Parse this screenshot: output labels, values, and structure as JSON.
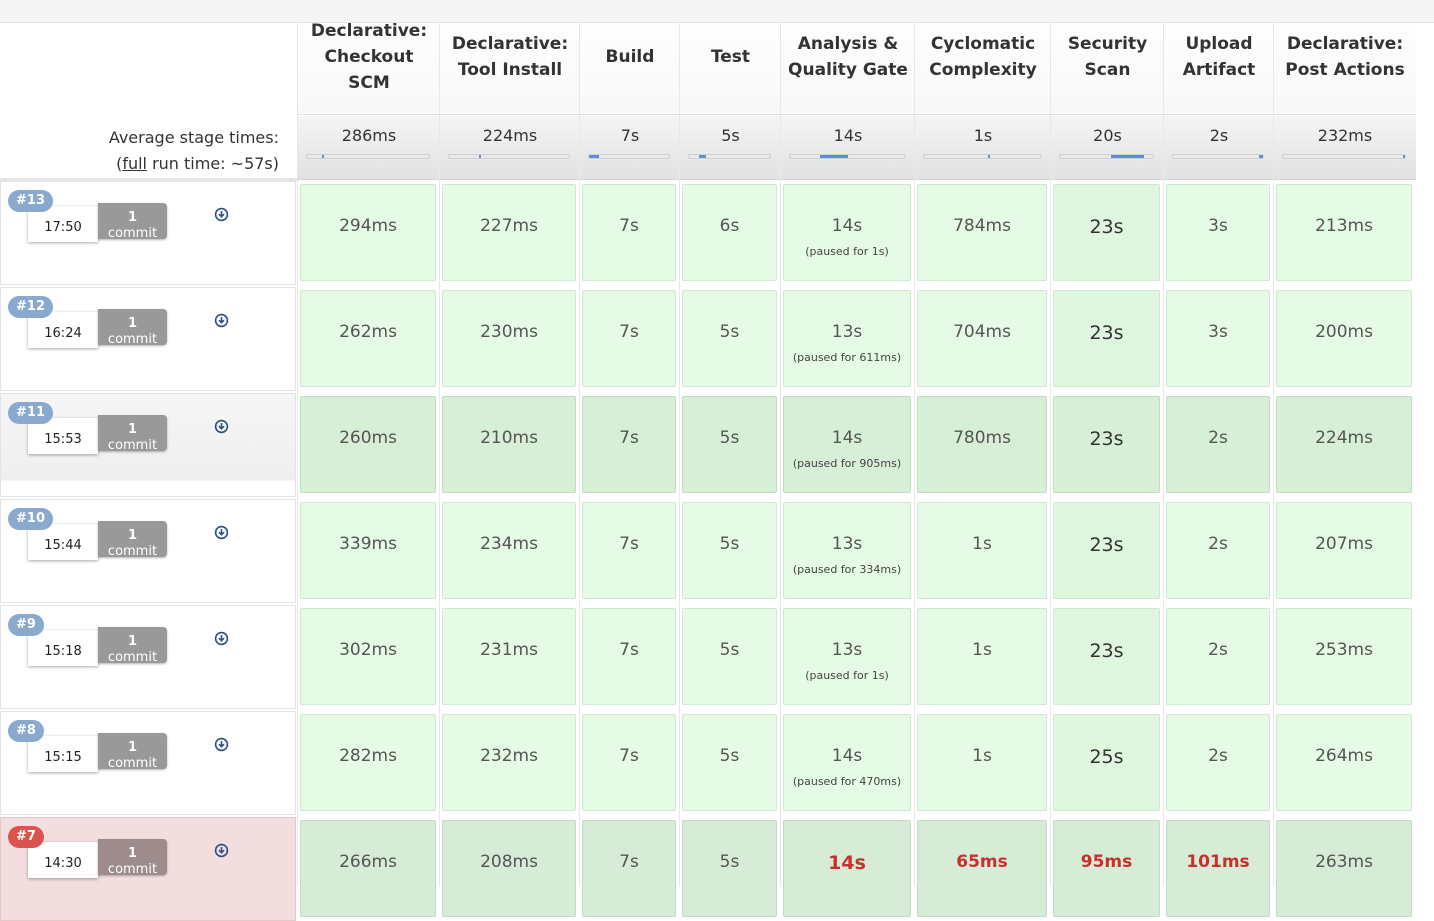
{
  "summary": {
    "avg_label": "Average stage times:",
    "full_prefix": "(",
    "full_link": "full",
    "full_suffix": " run time: ~57s)"
  },
  "stages": [
    {
      "name": "Declarative: Checkout SCM",
      "avg": "286ms",
      "avg_share": 0.005
    },
    {
      "name": "Declarative: Tool Install",
      "avg": "224ms",
      "avg_share": 0.004
    },
    {
      "name": "Build",
      "avg": "7s",
      "avg_share": 0.12
    },
    {
      "name": "Test",
      "avg": "5s",
      "avg_share": 0.09
    },
    {
      "name": "Analysis & Quality Gate",
      "avg": "14s",
      "avg_share": 0.25
    },
    {
      "name": "Cyclomatic Complexity",
      "avg": "1s",
      "avg_share": 0.02
    },
    {
      "name": "Security Scan",
      "avg": "20s",
      "avg_share": 0.35
    },
    {
      "name": "Upload Artifact",
      "avg": "2s",
      "avg_share": 0.04
    },
    {
      "name": "Declarative: Post Actions",
      "avg": "232ms",
      "avg_share": 0.004
    }
  ],
  "runs": [
    {
      "id": "#13",
      "time": "17:50",
      "commits": "1",
      "commit_label": "commit",
      "status": "success",
      "cells": [
        {
          "t": "294ms"
        },
        {
          "t": "227ms"
        },
        {
          "t": "7s"
        },
        {
          "t": "6s"
        },
        {
          "t": "14s",
          "p": "(paused for 1s)"
        },
        {
          "t": "784ms"
        },
        {
          "t": "23s",
          "b": true
        },
        {
          "t": "3s"
        },
        {
          "t": "213ms"
        }
      ]
    },
    {
      "id": "#12",
      "time": "16:24",
      "commits": "1",
      "commit_label": "commit",
      "status": "success",
      "cells": [
        {
          "t": "262ms"
        },
        {
          "t": "230ms"
        },
        {
          "t": "7s"
        },
        {
          "t": "5s"
        },
        {
          "t": "13s",
          "p": "(paused for 611ms)"
        },
        {
          "t": "704ms"
        },
        {
          "t": "23s",
          "b": true
        },
        {
          "t": "3s"
        },
        {
          "t": "200ms"
        }
      ]
    },
    {
      "id": "#11",
      "time": "15:53",
      "commits": "1",
      "commit_label": "commit",
      "status": "success",
      "cells": [
        {
          "t": "260ms"
        },
        {
          "t": "210ms"
        },
        {
          "t": "7s"
        },
        {
          "t": "5s"
        },
        {
          "t": "14s",
          "p": "(paused for 905ms)"
        },
        {
          "t": "780ms"
        },
        {
          "t": "23s",
          "b": true
        },
        {
          "t": "2s"
        },
        {
          "t": "224ms"
        }
      ]
    },
    {
      "id": "#10",
      "time": "15:44",
      "commits": "1",
      "commit_label": "commit",
      "status": "success",
      "cells": [
        {
          "t": "339ms"
        },
        {
          "t": "234ms"
        },
        {
          "t": "7s"
        },
        {
          "t": "5s"
        },
        {
          "t": "13s",
          "p": "(paused for 334ms)"
        },
        {
          "t": "1s"
        },
        {
          "t": "23s",
          "b": true
        },
        {
          "t": "2s"
        },
        {
          "t": "207ms"
        }
      ]
    },
    {
      "id": "#9",
      "time": "15:18",
      "commits": "1",
      "commit_label": "commit",
      "status": "success",
      "cells": [
        {
          "t": "302ms"
        },
        {
          "t": "231ms"
        },
        {
          "t": "7s"
        },
        {
          "t": "5s"
        },
        {
          "t": "13s",
          "p": "(paused for 1s)"
        },
        {
          "t": "1s"
        },
        {
          "t": "23s",
          "b": true
        },
        {
          "t": "2s"
        },
        {
          "t": "253ms"
        }
      ]
    },
    {
      "id": "#8",
      "time": "15:15",
      "commits": "1",
      "commit_label": "commit",
      "status": "success",
      "cells": [
        {
          "t": "282ms"
        },
        {
          "t": "232ms"
        },
        {
          "t": "7s"
        },
        {
          "t": "5s"
        },
        {
          "t": "14s",
          "p": "(paused for 470ms)"
        },
        {
          "t": "1s"
        },
        {
          "t": "25s",
          "b": true
        },
        {
          "t": "2s"
        },
        {
          "t": "264ms"
        }
      ]
    },
    {
      "id": "#7",
      "time": "14:30",
      "commits": "1",
      "commit_label": "commit",
      "status": "failed",
      "cells": [
        {
          "t": "266ms"
        },
        {
          "t": "208ms"
        },
        {
          "t": "7s"
        },
        {
          "t": "5s"
        },
        {
          "t": "14s",
          "fail": true
        },
        {
          "t": "65ms",
          "fail": true
        },
        {
          "t": "95ms",
          "fail": true
        },
        {
          "t": "101ms",
          "fail": true
        },
        {
          "t": "263ms"
        }
      ]
    }
  ],
  "icons": {
    "download": "download-circle-icon"
  },
  "colors": {
    "success": "#e5fbe5",
    "failed": "#f2dede",
    "badge": "#8aa9cf",
    "badge_failed": "#d9534f",
    "bar": "#5b8fd8"
  }
}
